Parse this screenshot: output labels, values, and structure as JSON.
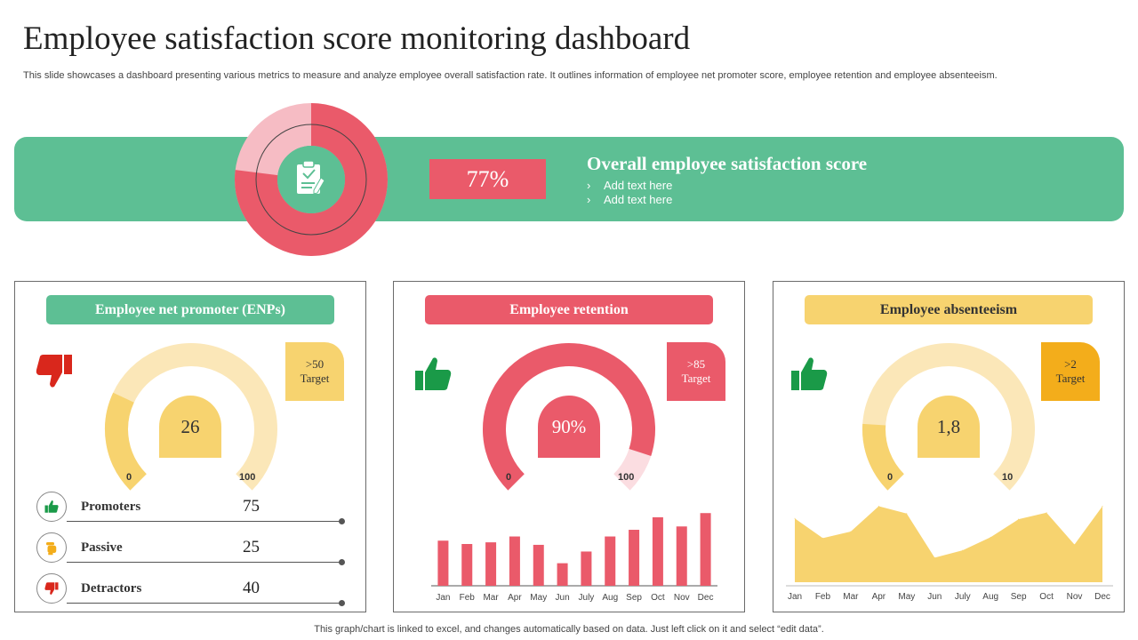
{
  "header": {
    "title": "Employee satisfaction score monitoring dashboard",
    "subtitle": "This slide showcases a dashboard presenting various metrics to measure and analyze employee overall satisfaction rate. It outlines information of employee net promoter score, employee retention and employee absenteeism."
  },
  "overall": {
    "score_label": "77%",
    "score_value": 77,
    "title": "Overall employee satisfaction score",
    "bullets": [
      "Add text here",
      "Add text here"
    ]
  },
  "enps": {
    "title": "Employee net promoter (ENPs)",
    "gauge_value": 26,
    "gauge_max": 100,
    "center_label": "26",
    "min_label": "0",
    "max_label": "100",
    "target": ">50",
    "target_word": "Target",
    "stats": [
      {
        "label": "Promoters",
        "value": "75"
      },
      {
        "label": "Passive",
        "value": "25"
      },
      {
        "label": "Detractors",
        "value": "40"
      }
    ]
  },
  "retention": {
    "title": "Employee retention",
    "gauge_value": 90,
    "gauge_max": 100,
    "center_label": "90%",
    "min_label": "0",
    "max_label": "100",
    "target": ">85",
    "target_word": "Target"
  },
  "absenteeism": {
    "title": "Employee absenteeism",
    "gauge_value": 1.8,
    "gauge_max": 10,
    "center_label": "1,8",
    "min_label": "0",
    "max_label": "10",
    "target": ">2",
    "target_word": "Target"
  },
  "chart_data": [
    {
      "type": "bar",
      "title": "Employee retention",
      "categories": [
        "Jan",
        "Feb",
        "Mar",
        "Apr",
        "May",
        "Jun",
        "July",
        "Aug",
        "Sep",
        "Oct",
        "Nov",
        "Dec"
      ],
      "values": [
        54,
        50,
        52,
        59,
        49,
        27,
        41,
        59,
        67,
        82,
        71,
        87
      ],
      "ylim": [
        0,
        100
      ],
      "xlabel": "",
      "ylabel": ""
    },
    {
      "type": "area",
      "title": "Employee absenteeism",
      "categories": [
        "Jan",
        "Feb",
        "Mar",
        "Apr",
        "May",
        "Jun",
        "July",
        "Aug",
        "Sep",
        "Oct",
        "Nov",
        "Dec"
      ],
      "values": [
        78,
        54,
        62,
        93,
        84,
        30,
        39,
        55,
        77,
        85,
        46,
        93
      ],
      "ylim": [
        0,
        100
      ],
      "xlabel": "",
      "ylabel": ""
    }
  ],
  "footer": {
    "note": "This graph/chart is linked to excel, and changes automatically based on data. Just left click on it and select “edit data”."
  },
  "colors": {
    "green": "#5dbf94",
    "red": "#ea5a6a",
    "pink": "#f6bcc4",
    "yellow": "#f7d36f",
    "light_yellow": "#fbe7b8",
    "orange": "#f3ad1b",
    "light_red": "#fbdde1"
  }
}
